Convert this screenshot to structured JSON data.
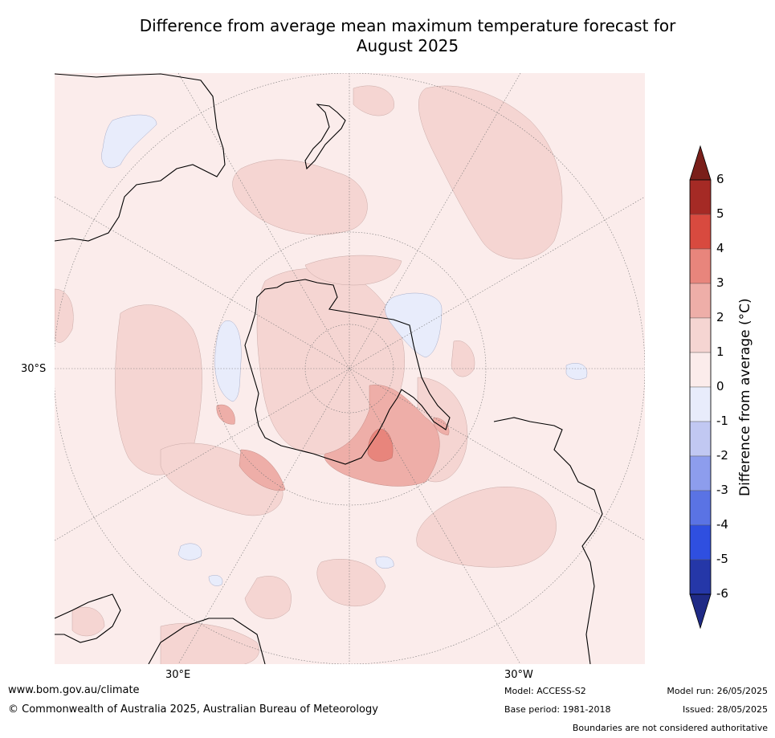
{
  "title_line1": "Difference from average mean maximum temperature forecast for",
  "title_line2": "August 2025",
  "lat_label": "30°S",
  "lon_label_left": "30°E",
  "lon_label_right": "30°W",
  "colorbar": {
    "label": "Difference from average (°C)",
    "ticks": [
      "6",
      "5",
      "4",
      "3",
      "2",
      "1",
      "0",
      "-1",
      "-2",
      "-3",
      "-4",
      "-5",
      "-6"
    ],
    "colors": [
      "#a52a25",
      "#d84a3f",
      "#e8857c",
      "#eeaea8",
      "#f5d5d2",
      "#fbeceb",
      "#e8ecfb",
      "#c1c8f2",
      "#8d9ded",
      "#5a73e4",
      "#2f4fe0",
      "#2537a8"
    ],
    "extend_top_color": "#7a1f1a",
    "extend_bottom_color": "#1f2a86"
  },
  "footer": {
    "website": "www.bom.gov.au/climate",
    "copyright": "© Commonwealth of Australia 2025, Australian Bureau of Meteorology",
    "model": "Model: ACCESS-S2",
    "base_period": "Base period: 1981-2018",
    "model_run": "Model run: 26/05/2025",
    "issued": "Issued: 28/05/2025",
    "disclaimer": "Boundaries are not considered authoritative"
  },
  "colors": {
    "map_background": "#fbeceb",
    "warm_1_2": "#f5d5d2",
    "warm_2_3": "#eeaea8",
    "warm_3_4": "#e8857c",
    "cool_0_m1": "#e8ecfb"
  }
}
